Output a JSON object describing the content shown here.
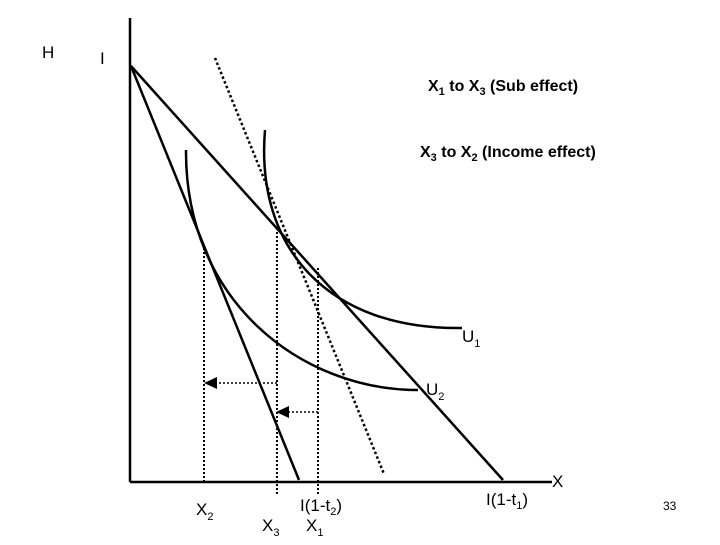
{
  "axes": {
    "y_label": "H",
    "x_label": "X"
  },
  "intercepts": {
    "income": "I",
    "budget_1": {
      "base": "I(1-t",
      "sub": "1",
      "tail": ")"
    },
    "budget_2": {
      "base": "I(1-t",
      "sub": "2",
      "tail": ")"
    }
  },
  "curves": {
    "u1": {
      "base": "U",
      "sub": "1"
    },
    "u2": {
      "base": "U",
      "sub": "2"
    }
  },
  "x_markers": {
    "x1": {
      "base": "X",
      "sub": "1"
    },
    "x2": {
      "base": "X",
      "sub": "2"
    },
    "x3": {
      "base": "X",
      "sub": "3"
    }
  },
  "annotations": {
    "sub_effect": {
      "a": "X",
      "a_sub": "1",
      "mid": " to X",
      "b_sub": "3",
      "tail": " (Sub effect)"
    },
    "income_effect": {
      "a": "X",
      "a_sub": "3",
      "mid": " to X",
      "b_sub": "2",
      "tail": " (Income effect)"
    }
  },
  "page_number": "33"
}
